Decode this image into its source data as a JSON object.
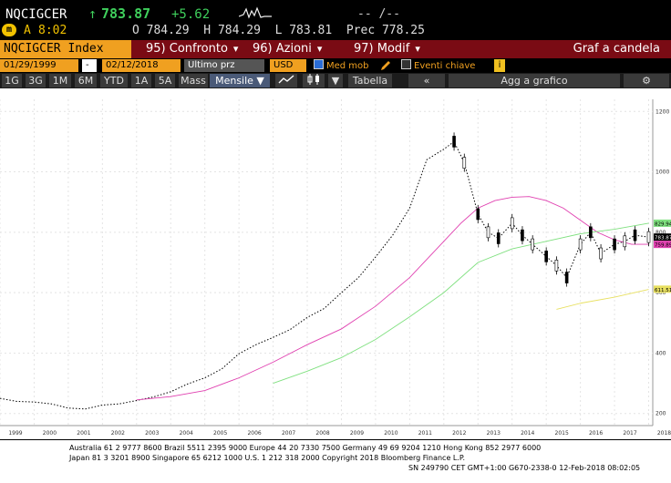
{
  "quote": {
    "ticker": "NQCIGCER",
    "arrow": "↑",
    "last": "783.87",
    "change": "+5.62",
    "dash": "-- /--",
    "indicator": "A",
    "time": "8:02",
    "open_label": "O",
    "open": "784.29",
    "high_label": "H",
    "high": "784.29",
    "low_label": "L",
    "low": "783.81",
    "prev_label": "Prec",
    "prev": "778.25"
  },
  "tabs": {
    "index": "NQCIGCER Index",
    "confronto": "95) Confronto",
    "azioni": "96) Azioni",
    "modif": "97) Modif",
    "graf": "Graf a candela"
  },
  "options": {
    "start_date": "01/29/1999",
    "sep": "-",
    "end_date": "02/12/2018",
    "field": "Ultimo prz",
    "currency": "USD",
    "med_mob": "Med mob",
    "eventi": "Eventi chiave"
  },
  "period": {
    "buttons": [
      "1G",
      "3G",
      "1M",
      "6M",
      "YTD",
      "1A",
      "5A",
      "Mass"
    ],
    "frequency": "Mensile ▼",
    "tabella": "Tabella",
    "add": "Agg a grafico"
  },
  "colors": {
    "ma_fast": "#e040b0",
    "ma_mid": "#7fe07f",
    "ma_slow": "#e8e060",
    "price": "#000000",
    "tabs_bg": "#7a0b14",
    "accent": "#f0a020"
  },
  "chart_data": {
    "type": "line",
    "x_ticks": [
      "1999",
      "2000",
      "2001",
      "2002",
      "2003",
      "2004",
      "2005",
      "2006",
      "2007",
      "2008",
      "2009",
      "2010",
      "2011",
      "2012",
      "2013",
      "2014",
      "2015",
      "2016",
      "2017",
      "2018"
    ],
    "y_ticks": [
      200,
      400,
      600,
      800,
      1000,
      1200
    ],
    "ylim": [
      160,
      1240
    ],
    "xlim": [
      1999.0,
      2018.12
    ],
    "price_labels": {
      "last": "783.87",
      "ma_fast": "759.89",
      "ma_mid": "829.94",
      "ma_slow": "611.51"
    },
    "series": [
      {
        "x": [
          1999.0,
          1999.5,
          2000.0,
          2000.5,
          2001.0,
          2001.5,
          2002.0,
          2002.5,
          2003.0,
          2003.5,
          2004.0,
          2004.5,
          2005.0,
          2005.5,
          2006.0,
          2006.5,
          2007.0,
          2007.5,
          2008.0,
          2008.5,
          2009.0,
          2009.5,
          2010.0,
          2010.5,
          2011.0,
          2011.5,
          2012.0,
          2012.3,
          2012.6,
          2013.0,
          2013.3,
          2013.6,
          2014.0,
          2014.3,
          2014.6,
          2015.0,
          2015.3,
          2015.6,
          2016.0,
          2016.3,
          2016.6,
          2017.0,
          2017.3,
          2017.6,
          2018.0
        ],
        "values": [
          250,
          240,
          238,
          232,
          218,
          215,
          228,
          232,
          243,
          255,
          272,
          298,
          318,
          348,
          398,
          428,
          452,
          478,
          518,
          548,
          600,
          650,
          718,
          790,
          880,
          1040,
          1075,
          1100,
          1030,
          860,
          800,
          780,
          830,
          790,
          760,
          720,
          690,
          650,
          760,
          800,
          730,
          760,
          770,
          790,
          784
        ]
      },
      {
        "x": [
          2003.0,
          2004.0,
          2005.0,
          2006.0,
          2007.0,
          2008.0,
          2009.0,
          2010.0,
          2011.0,
          2012.0,
          2012.5,
          2013.0,
          2013.5,
          2014.0,
          2014.5,
          2015.0,
          2015.5,
          2016.0,
          2016.5,
          2017.0,
          2017.5,
          2018.0
        ],
        "values": [
          245,
          256,
          276,
          318,
          370,
          428,
          480,
          555,
          650,
          770,
          830,
          880,
          905,
          916,
          918,
          905,
          880,
          840,
          800,
          775,
          760,
          760
        ]
      },
      {
        "x": [
          2007.0,
          2008.0,
          2009.0,
          2010.0,
          2011.0,
          2012.0,
          2013.0,
          2014.0,
          2015.0,
          2016.0,
          2017.0,
          2018.0
        ],
        "values": [
          300,
          340,
          385,
          445,
          520,
          600,
          700,
          745,
          770,
          795,
          810,
          830
        ]
      },
      {
        "x": [
          2015.3,
          2016.0,
          2017.0,
          2018.0
        ],
        "values": [
          545,
          565,
          585,
          611
        ]
      }
    ]
  },
  "footer": {
    "line1": "Australia 61 2 9777 8600 Brazil 5511 2395 9000 Europe 44 20 7330 7500 Germany 49 69 9204 1210 Hong Kong 852 2977 6000",
    "line2": "Japan 81 3 3201 8900        Singapore 65 6212 1000        U.S. 1 212 318 2000             Copyright 2018 Bloomberg Finance L.P.",
    "line3": "SN 249790 CET  GMT+1:00 G670-2338-0 12-Feb-2018 08:02:05"
  }
}
